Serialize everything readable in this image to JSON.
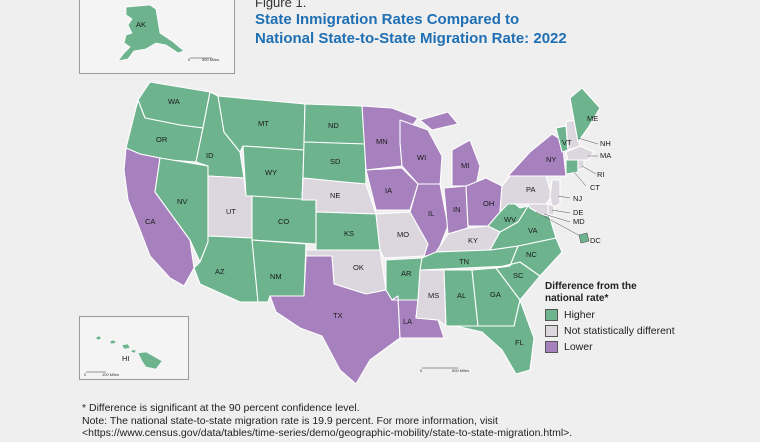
{
  "figure_label": "Figure 1.",
  "title_line1": "State Inmigration Rates Compared to",
  "title_line2": "National State-to-State Migration Rate: 2022",
  "colors": {
    "higher": "#6db38e",
    "not_different": "#dcd7de",
    "lower": "#a681bd",
    "border": "#ffffff"
  },
  "legend": {
    "title_line1": "Difference from the",
    "title_line2": "national rate*",
    "items": [
      {
        "key": "higher",
        "label": "Higher"
      },
      {
        "key": "not_different",
        "label": "Not statistically different"
      },
      {
        "key": "lower",
        "label": "Lower"
      }
    ]
  },
  "states": [
    {
      "abbr": "WA",
      "category": "higher"
    },
    {
      "abbr": "OR",
      "category": "higher"
    },
    {
      "abbr": "CA",
      "category": "lower"
    },
    {
      "abbr": "NV",
      "category": "higher"
    },
    {
      "abbr": "ID",
      "category": "higher"
    },
    {
      "abbr": "MT",
      "category": "higher"
    },
    {
      "abbr": "WY",
      "category": "higher"
    },
    {
      "abbr": "UT",
      "category": "not_different"
    },
    {
      "abbr": "AZ",
      "category": "higher"
    },
    {
      "abbr": "CO",
      "category": "higher"
    },
    {
      "abbr": "NM",
      "category": "higher"
    },
    {
      "abbr": "ND",
      "category": "higher"
    },
    {
      "abbr": "SD",
      "category": "higher"
    },
    {
      "abbr": "NE",
      "category": "not_different"
    },
    {
      "abbr": "KS",
      "category": "higher"
    },
    {
      "abbr": "OK",
      "category": "not_different"
    },
    {
      "abbr": "TX",
      "category": "lower"
    },
    {
      "abbr": "MN",
      "category": "lower"
    },
    {
      "abbr": "IA",
      "category": "lower"
    },
    {
      "abbr": "MO",
      "category": "not_different"
    },
    {
      "abbr": "AR",
      "category": "higher"
    },
    {
      "abbr": "LA",
      "category": "lower"
    },
    {
      "abbr": "WI",
      "category": "lower"
    },
    {
      "abbr": "IL",
      "category": "lower"
    },
    {
      "abbr": "MI",
      "category": "lower"
    },
    {
      "abbr": "IN",
      "category": "lower"
    },
    {
      "abbr": "OH",
      "category": "lower"
    },
    {
      "abbr": "KY",
      "category": "not_different"
    },
    {
      "abbr": "TN",
      "category": "higher"
    },
    {
      "abbr": "MS",
      "category": "not_different"
    },
    {
      "abbr": "AL",
      "category": "higher"
    },
    {
      "abbr": "GA",
      "category": "higher"
    },
    {
      "abbr": "FL",
      "category": "higher"
    },
    {
      "abbr": "SC",
      "category": "higher"
    },
    {
      "abbr": "NC",
      "category": "higher"
    },
    {
      "abbr": "VA",
      "category": "higher"
    },
    {
      "abbr": "WV",
      "category": "higher"
    },
    {
      "abbr": "PA",
      "category": "not_different"
    },
    {
      "abbr": "NY",
      "category": "lower"
    },
    {
      "abbr": "VT",
      "category": "higher"
    },
    {
      "abbr": "NH",
      "category": "not_different"
    },
    {
      "abbr": "ME",
      "category": "higher"
    },
    {
      "abbr": "MA",
      "category": "not_different"
    },
    {
      "abbr": "RI",
      "category": "not_different"
    },
    {
      "abbr": "CT",
      "category": "higher"
    },
    {
      "abbr": "NJ",
      "category": "not_different"
    },
    {
      "abbr": "DE",
      "category": "not_different"
    },
    {
      "abbr": "MD",
      "category": "not_different"
    },
    {
      "abbr": "DC",
      "category": "higher"
    },
    {
      "abbr": "AK",
      "category": "higher"
    },
    {
      "abbr": "HI",
      "category": "higher"
    }
  ],
  "scale_labels": {
    "zero": "0",
    "alaska": "500 Miles",
    "hawaii": "100 Miles",
    "main": "500 Miles"
  },
  "notes": {
    "line1": "* Difference is significant at the 90 percent confidence level.",
    "line2": "Note: The national state-to-state migration rate is 19.9 percent. For more information, visit",
    "line3": "<https://www.census.gov/data/tables/time-series/demo/geographic-mobility/state-to-state-migration.html>."
  }
}
